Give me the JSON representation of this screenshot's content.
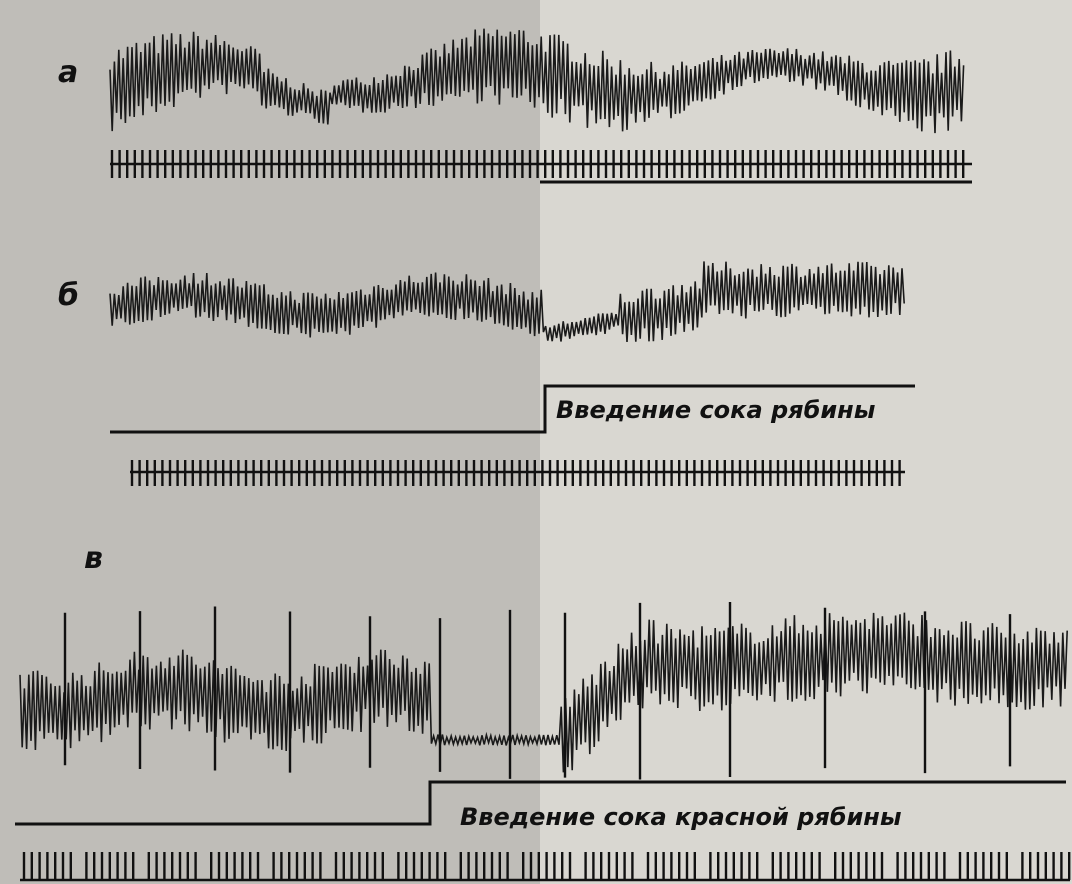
{
  "panels": [
    {
      "label": "а"
    },
    {
      "label": "б",
      "annotation": "Введение сока рябины"
    },
    {
      "label": "в",
      "annotation": "Введение сока красной рябины"
    }
  ]
}
